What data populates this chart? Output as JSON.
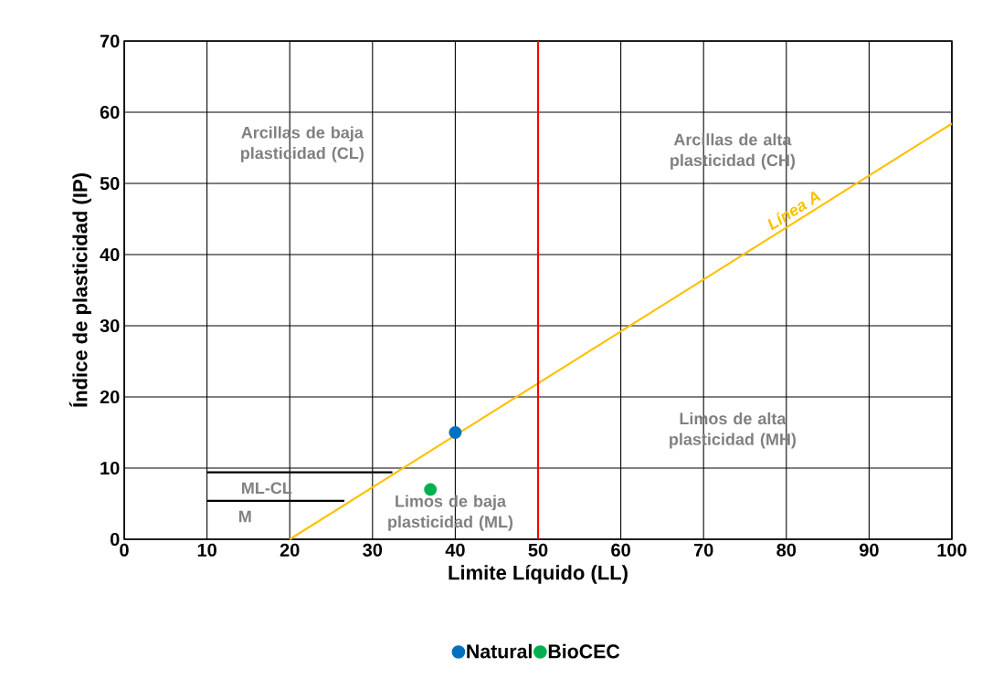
{
  "chart_data": {
    "type": "scatter",
    "xlabel": "Limite Líquido  (LL)",
    "ylabel": "Índice de plasticidad (IP)",
    "xlim": [
      0,
      100
    ],
    "ylim": [
      0,
      70
    ],
    "xticks": [
      0,
      10,
      20,
      30,
      40,
      50,
      60,
      70,
      80,
      90,
      100
    ],
    "yticks": [
      0,
      10,
      20,
      30,
      40,
      50,
      60,
      70
    ],
    "grid": true,
    "legend": "bottom",
    "series": [
      {
        "name": "Natural",
        "marker": "circle",
        "color": "#0070c0",
        "x": [
          40
        ],
        "values": [
          15
        ]
      },
      {
        "name": "BioCEC",
        "marker": "circle",
        "color": "#00b050",
        "x": [
          37
        ],
        "values": [
          7
        ]
      },
      {
        "name": "Línea A",
        "type": "line",
        "marker": "none",
        "color": "#ffc000",
        "x": [
          20,
          100
        ],
        "values": [
          0,
          58.4
        ]
      },
      {
        "type": "line",
        "marker": "none",
        "color": "#000000",
        "x": [
          10,
          32.4
        ],
        "values": [
          9.4,
          9.4
        ]
      },
      {
        "type": "line",
        "marker": "none",
        "color": "#000000",
        "x": [
          10,
          26.6
        ],
        "values": [
          5.4,
          5.4
        ]
      }
    ],
    "ref_lines": [
      {
        "axis": "x",
        "value": 50,
        "color": "#ff0000"
      }
    ],
    "annotations": [
      "Arcillas de baja plasticidad (CL)",
      "Arcillas de alta plasticidad (CH)",
      "Limos de alta plasticidad (MH)",
      "Limos de baja plasticidad (ML)",
      "ML-CL",
      "M"
    ]
  }
}
